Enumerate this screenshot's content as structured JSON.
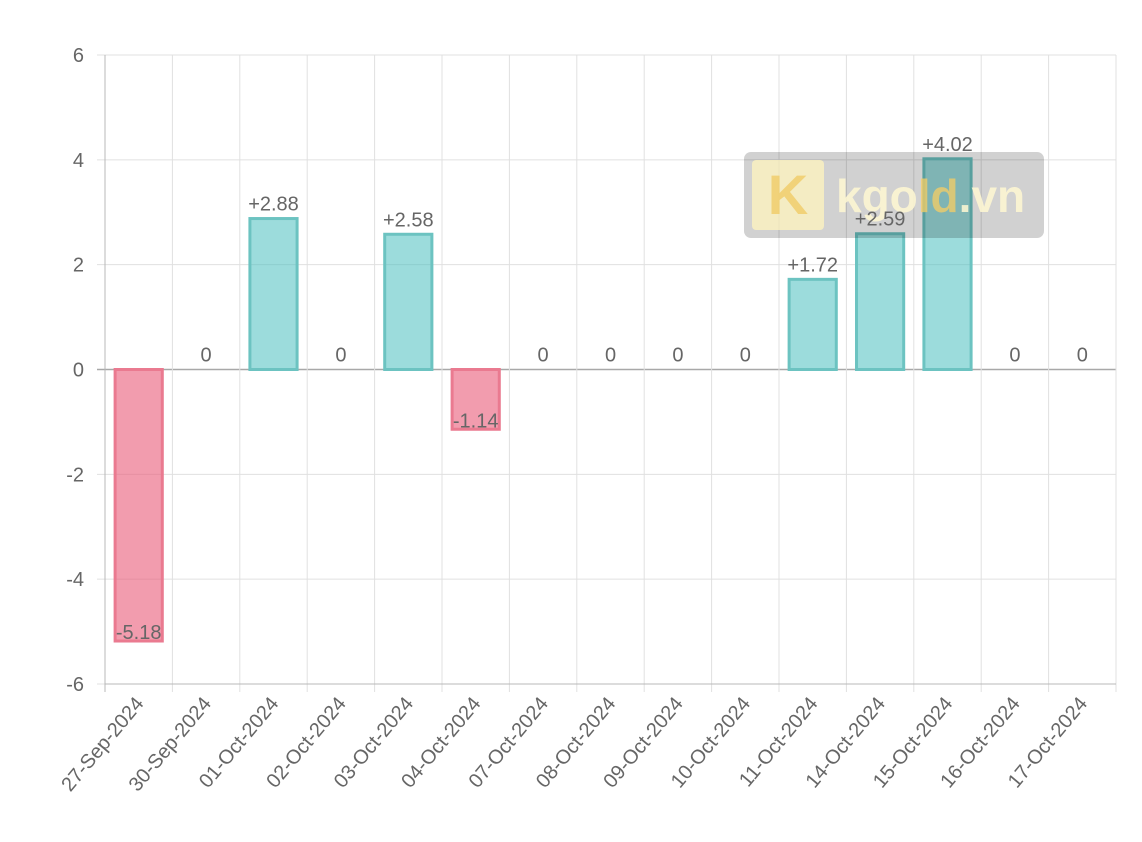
{
  "chart_data": {
    "type": "bar",
    "title": "",
    "xlabel": "",
    "ylabel": "",
    "categories": [
      "27-Sep-2024",
      "30-Sep-2024",
      "01-Oct-2024",
      "02-Oct-2024",
      "03-Oct-2024",
      "04-Oct-2024",
      "07-Oct-2024",
      "08-Oct-2024",
      "09-Oct-2024",
      "10-Oct-2024",
      "11-Oct-2024",
      "14-Oct-2024",
      "15-Oct-2024",
      "16-Oct-2024",
      "17-Oct-2024"
    ],
    "values": [
      -5.18,
      0,
      2.88,
      0,
      2.58,
      -1.14,
      0,
      0,
      0,
      0,
      1.72,
      2.59,
      4.02,
      0,
      0
    ],
    "data_labels": [
      "-5.18",
      "0",
      "+2.88",
      "0",
      "+2.58",
      "-1.14",
      "0",
      "0",
      "0",
      "0",
      "+1.72",
      "+2.59",
      "+4.02",
      "0",
      "0"
    ],
    "ylim": [
      -6,
      6
    ],
    "yticks": [
      6,
      4,
      2,
      0,
      -2,
      -4,
      -6
    ],
    "grid": true,
    "colors": {
      "positive_fill": "rgba(75,192,192,0.55)",
      "positive_stroke": "#6cc3c1",
      "negative_fill": "rgba(234,90,120,0.6)",
      "negative_stroke": "#ea7a90",
      "grid": "#e0e0e0",
      "axis": "#b8b8b8",
      "text": "#666666"
    }
  },
  "watermark": {
    "logo_letter": "K",
    "text_prefix": "kgo",
    "text_highlight": "ld",
    "text_suffix": ".vn"
  }
}
